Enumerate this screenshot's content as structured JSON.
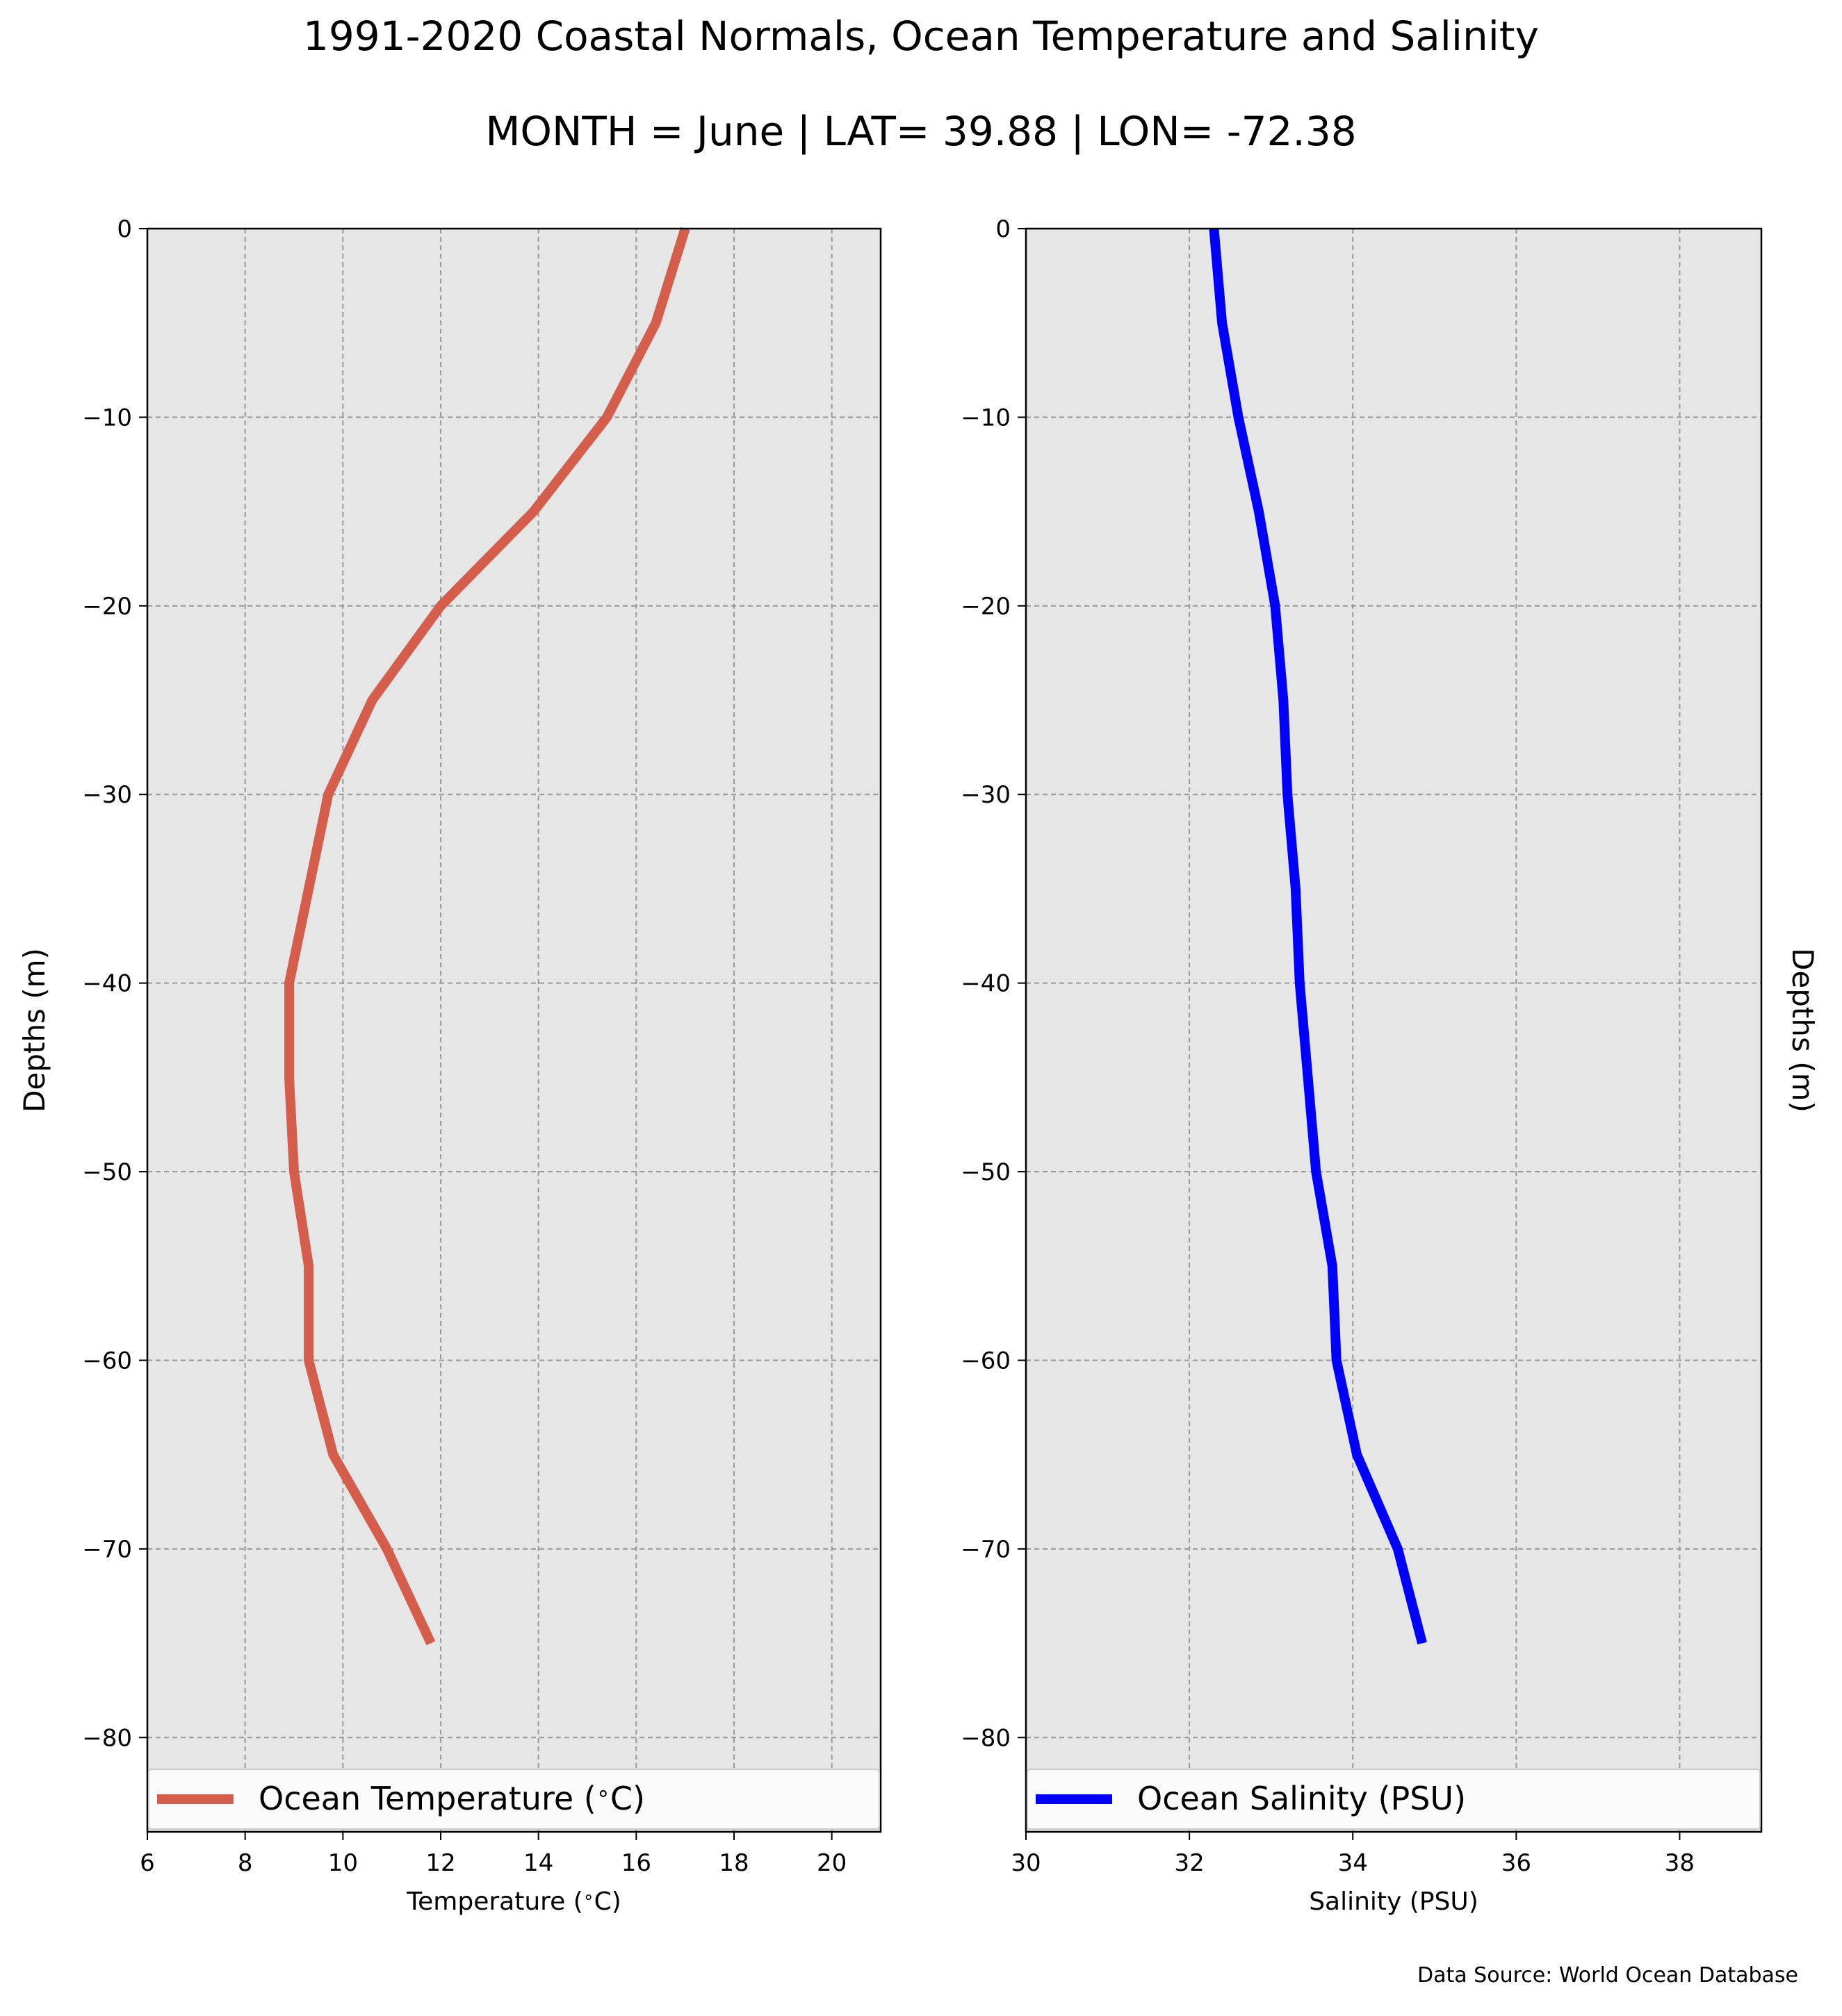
{
  "title_line1": "1991-2020 Coastal Normals, Ocean Temperature and Salinity",
  "title_line2": "MONTH = June | LAT= 39.88 | LON= -72.38",
  "source_note": "Data Source: World Ocean Database",
  "colors": {
    "background_panel": "#e6e6e6",
    "temperature": "#d45d4c",
    "salinity": "#0000ff",
    "grid": "#999999"
  },
  "chart_data": [
    {
      "type": "line",
      "xlabel": "Temperature ($^\\circ$C)",
      "ylabel": "Depths (m)",
      "xlim": [
        6,
        21
      ],
      "ylim": [
        -85,
        0
      ],
      "xticks": [
        6,
        8,
        10,
        12,
        14,
        16,
        18,
        20
      ],
      "yticks": [
        0,
        -10,
        -20,
        -30,
        -40,
        -50,
        -60,
        -70,
        -80
      ],
      "grid": true,
      "legend_position": "bottom",
      "series": [
        {
          "name": "Ocean Temperature ($^\\circ$C)",
          "color": "#d45d4c",
          "x": [
            17.0,
            16.4,
            15.4,
            13.9,
            12.0,
            10.6,
            9.7,
            9.3,
            8.9,
            8.9,
            9.0,
            9.3,
            9.3,
            9.8,
            10.9,
            11.8
          ],
          "y": [
            0,
            -5,
            -10,
            -15,
            -20,
            -25,
            -30,
            -35,
            -40,
            -45,
            -50,
            -55,
            -60,
            -65,
            -70,
            -75
          ]
        }
      ]
    },
    {
      "type": "line",
      "xlabel": "Salinity (PSU)",
      "ylabel": "Depths (m)",
      "xlim": [
        30,
        39
      ],
      "ylim": [
        -85,
        0
      ],
      "xticks": [
        30,
        32,
        34,
        36,
        38
      ],
      "yticks": [
        0,
        -10,
        -20,
        -30,
        -40,
        -50,
        -60,
        -70,
        -80
      ],
      "grid": true,
      "legend_position": "bottom",
      "ylabel_side": "right",
      "series": [
        {
          "name": "Ocean Salinity (PSU)",
          "color": "#0000ff",
          "x": [
            32.3,
            32.4,
            32.6,
            32.85,
            33.05,
            33.15,
            33.2,
            33.3,
            33.35,
            33.45,
            33.55,
            33.75,
            33.8,
            34.05,
            34.55,
            34.85
          ],
          "y": [
            0,
            -5,
            -10,
            -15,
            -20,
            -25,
            -30,
            -35,
            -40,
            -45,
            -50,
            -55,
            -60,
            -65,
            -70,
            -75
          ]
        }
      ]
    }
  ]
}
